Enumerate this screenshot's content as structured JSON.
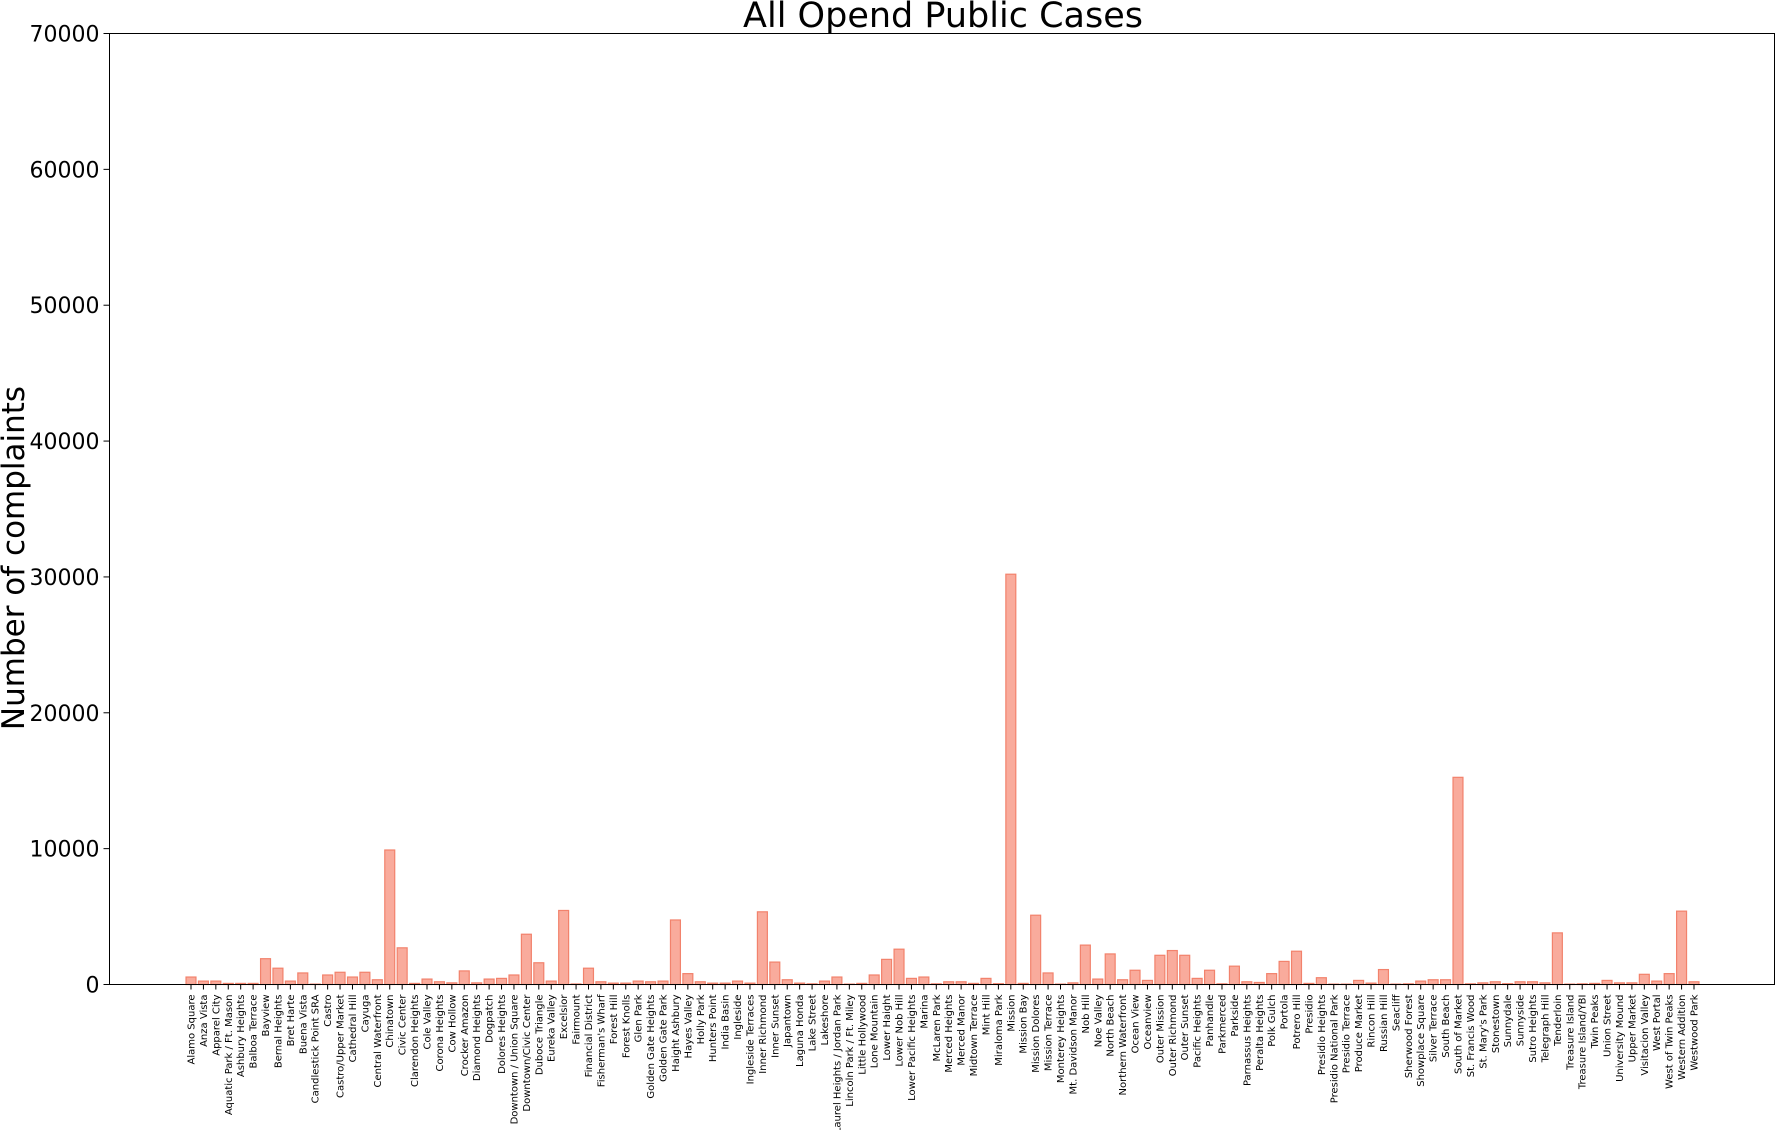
{
  "chart_data": {
    "type": "bar",
    "title": "All Opend Public Cases",
    "xlabel": "",
    "ylabel": "Number of complaints",
    "ylim": [
      0,
      70000
    ],
    "yticks": [
      0,
      10000,
      20000,
      30000,
      40000,
      50000,
      60000,
      70000
    ],
    "grid": false,
    "bar_color": "#f9ab9c",
    "bar_edge_color": "#f2826c",
    "categories": [
      "Alamo Square",
      "Anza Vista",
      "Apparel City",
      "Aquatic Park / Ft. Mason",
      "Ashbury Heights",
      "Balboa Terrace",
      "Bayview",
      "Bernal Heights",
      "Bret Harte",
      "Buena Vista",
      "Candlestick Point SRA",
      "Castro",
      "Castro/Upper Market",
      "Cathedral Hill",
      "Cayuga",
      "Central Waterfront",
      "Chinatown",
      "Civic Center",
      "Clarendon Heights",
      "Cole Valley",
      "Corona Heights",
      "Cow Hollow",
      "Crocker Amazon",
      "Diamond Heights",
      "Dogpatch",
      "Dolores Heights",
      "Downtown / Union Square",
      "Downtown/Civic Center",
      "Duboce Triangle",
      "Eureka Valley",
      "Excelsior",
      "Fairmount",
      "Financial District",
      "Fisherman's Wharf",
      "Forest Hill",
      "Forest Knolls",
      "Glen Park",
      "Golden Gate Heights",
      "Golden Gate Park",
      "Haight Ashbury",
      "Hayes Valley",
      "Holly Park",
      "Hunters Point",
      "India Basin",
      "Ingleside",
      "Ingleside Terraces",
      "Inner Richmond",
      "Inner Sunset",
      "Japantown",
      "Laguna Honda",
      "Lake Street",
      "Lakeshore",
      "Laurel Heights / Jordan Park",
      "Lincoln Park / Ft. Miley",
      "Little Hollywood",
      "Lone Mountain",
      "Lower Haight",
      "Lower Nob Hill",
      "Lower Pacific Heights",
      "Marina",
      "McLaren Park",
      "Merced Heights",
      "Merced Manor",
      "Midtown Terrace",
      "Mint Hill",
      "Miraloma Park",
      "Mission",
      "Mission Bay",
      "Mission Dolores",
      "Mission Terrace",
      "Monterey Heights",
      "Mt. Davidson Manor",
      "Nob Hill",
      "Noe Valley",
      "North Beach",
      "Northern Waterfront",
      "Ocean View",
      "Oceanview",
      "Outer Mission",
      "Outer Richmond",
      "Outer Sunset",
      "Pacific Heights",
      "Panhandle",
      "Parkmerced",
      "Parkside",
      "Parnassus Heights",
      "Peralta Heights",
      "Polk Gulch",
      "Portola",
      "Potrero Hill",
      "Presidio",
      "Presidio Heights",
      "Presidio National Park",
      "Presidio Terrace",
      "Produce Market",
      "Rincon Hill",
      "Russian Hill",
      "Seacliff",
      "Sherwood Forest",
      "Showplace Square",
      "Silver Terrace",
      "South Beach",
      "South of Market",
      "St. Francis Wood",
      "St. Mary's Park",
      "Stonestown",
      "Sunnydale",
      "Sunnyside",
      "Sutro Heights",
      "Telegraph Hill",
      "Tenderloin",
      "Treasure Island",
      "Treasure Island/YBI",
      "Twin Peaks",
      "Union Street",
      "University Mound",
      "Upper Market",
      "Visitacion Valley",
      "West Portal",
      "West of Twin Peaks",
      "Western Addition",
      "Westwood Park"
    ],
    "values": [
      550,
      250,
      250,
      80,
      80,
      80,
      1900,
      1200,
      250,
      850,
      30,
      700,
      900,
      550,
      900,
      350,
      9900,
      2700,
      80,
      400,
      200,
      120,
      1000,
      120,
      400,
      450,
      700,
      3700,
      1600,
      250,
      5450,
      40,
      1200,
      200,
      100,
      100,
      250,
      200,
      250,
      4750,
      800,
      200,
      100,
      100,
      250,
      100,
      5350,
      1650,
      350,
      100,
      50,
      250,
      550,
      30,
      80,
      700,
      1850,
      2600,
      450,
      550,
      50,
      200,
      200,
      80,
      450,
      60,
      30200,
      80,
      5100,
      850,
      30,
      120,
      2900,
      400,
      2250,
      350,
      1050,
      300,
      2150,
      2500,
      2150,
      450,
      1050,
      50,
      1350,
      200,
      150,
      800,
      1700,
      2450,
      80,
      500,
      30,
      30,
      300,
      100,
      1100,
      30,
      50,
      250,
      350,
      350,
      15250,
      50,
      120,
      200,
      60,
      200,
      200,
      120,
      3800,
      30,
      50,
      80,
      300,
      120,
      120,
      750,
      250,
      800,
      5400,
      200
    ]
  }
}
